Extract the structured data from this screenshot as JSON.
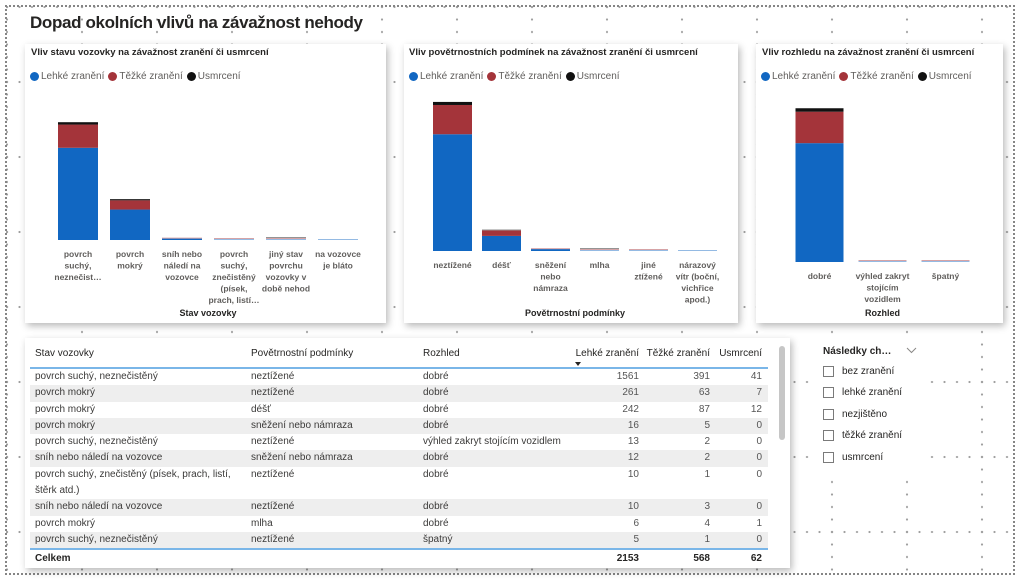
{
  "page": {
    "title": "Dopad okolních vlivů na závažnost nehody"
  },
  "chart_data": [
    {
      "type": "bar",
      "stacked": true,
      "title": "Vliv stavu vozovky na závažnost zranění či usmrcení",
      "xlabel": "Stav vozovky",
      "ylabel": "",
      "categories": [
        "povrch suchý, neznečist…",
        "povrch mokrý",
        "sníh nebo náledí na vozovce",
        "povrch suchý, znečistěný (písek, prach, listí…",
        "jiný stav povrchu vozovky v době nehod",
        "na vozovce je bláto"
      ],
      "tick_labels": [
        [
          "povrch",
          "suchý,",
          "neznečist…"
        ],
        [
          "povrch",
          "mokrý"
        ],
        [
          "sníh nebo",
          "náledí na",
          "vozovce"
        ],
        [
          "povrch",
          "suchý,",
          "znečistěný",
          "(písek,",
          "prach, listí…"
        ],
        [
          "jiný stav",
          "povrchu",
          "vozovky v",
          "době nehod"
        ],
        [
          "na vozovce",
          "je bláto"
        ]
      ],
      "series": [
        {
          "name": "Lehké zranění",
          "color": "#1167C2",
          "values": [
            1590,
            525,
            24,
            11,
            2,
            1
          ]
        },
        {
          "name": "Těžké zranění",
          "color": "#A4343A",
          "values": [
            400,
            159,
            5,
            3,
            1,
            0
          ]
        },
        {
          "name": "Usmrcení",
          "color": "#111111",
          "values": [
            41,
            20,
            0,
            0,
            1,
            0
          ]
        }
      ],
      "ylim": [
        0,
        2500
      ],
      "grid": false,
      "legend": "top-left"
    },
    {
      "type": "bar",
      "stacked": true,
      "title": "Vliv povětrnostních podmínek na závažnost zranění či usmrcení",
      "xlabel": "Povětrnostní podmínky",
      "ylabel": "",
      "categories": [
        "neztížené",
        "déšť",
        "sněžení nebo námraza",
        "mlha",
        "jiné ztížené",
        "nárazový vítr (boční, vichřice apod.)"
      ],
      "tick_labels": [
        [
          "neztížené"
        ],
        [
          "déšť"
        ],
        [
          "sněžení",
          "nebo",
          "námraza"
        ],
        [
          "mlha"
        ],
        [
          "jiné",
          "ztížené"
        ],
        [
          "nárazový",
          "vítr (boční,",
          "vichřice",
          "apod.)"
        ]
      ],
      "series": [
        {
          "name": "Lehké zranění",
          "color": "#1167C2",
          "values": [
            1871,
            242,
            30,
            6,
            3,
            1
          ]
        },
        {
          "name": "Těžké zranění",
          "color": "#A4343A",
          "values": [
            469,
            87,
            7,
            4,
            1,
            0
          ]
        },
        {
          "name": "Usmrcení",
          "color": "#111111",
          "values": [
            49,
            12,
            0,
            1,
            0,
            0
          ]
        }
      ],
      "ylim": [
        0,
        2500
      ],
      "grid": false,
      "legend": "top-left"
    },
    {
      "type": "bar",
      "stacked": true,
      "title": "Vliv rozhledu na závažnost zranění či usmrcení",
      "xlabel": "Rozhled",
      "ylabel": "",
      "categories": [
        "dobré",
        "výhled zakryt stojícím vozidlem",
        "špatný"
      ],
      "tick_labels": [
        [
          "dobré"
        ],
        [
          "výhled zakryt",
          "stojícím",
          "vozidlem"
        ],
        [
          "špatný"
        ]
      ],
      "series": [
        {
          "name": "Lehké zranění",
          "color": "#1167C2",
          "values": [
            2135,
            13,
            5
          ]
        },
        {
          "name": "Těžké zranění",
          "color": "#A4343A",
          "values": [
            565,
            2,
            1
          ]
        },
        {
          "name": "Usmrcení",
          "color": "#111111",
          "values": [
            62,
            0,
            0
          ]
        }
      ],
      "ylim": [
        0,
        3000
      ],
      "grid": false,
      "legend": "top-left"
    }
  ],
  "table": {
    "columns": [
      "Stav vozovky",
      "Povětrnostní podmínky",
      "Rozhled",
      "Lehké zranění",
      "Těžké zranění",
      "Usmrcení"
    ],
    "sorted_column": "Lehké zranění",
    "sort_direction": "descending",
    "rows": [
      [
        "povrch suchý, neznečistěný",
        "neztížené",
        "dobré",
        "1561",
        "391",
        "41"
      ],
      [
        "povrch mokrý",
        "neztížené",
        "dobré",
        "261",
        "63",
        "7"
      ],
      [
        "povrch mokrý",
        "déšť",
        "dobré",
        "242",
        "87",
        "12"
      ],
      [
        "povrch mokrý",
        "sněžení nebo námraza",
        "dobré",
        "16",
        "5",
        "0"
      ],
      [
        "povrch suchý, neznečistěný",
        "neztížené",
        "výhled zakryt stojícím vozidlem",
        "13",
        "2",
        "0"
      ],
      [
        "sníh nebo náledí na vozovce",
        "sněžení nebo námraza",
        "dobré",
        "12",
        "2",
        "0"
      ],
      [
        "povrch suchý, znečistěný (písek, prach, listí, štěrk atd.)",
        "neztížené",
        "dobré",
        "10",
        "1",
        "0"
      ],
      [
        "sníh nebo náledí na vozovce",
        "neztížené",
        "dobré",
        "10",
        "3",
        "0"
      ],
      [
        "povrch mokrý",
        "mlha",
        "dobré",
        "6",
        "4",
        "1"
      ],
      [
        "povrch suchý, neznečistěný",
        "neztížené",
        "špatný",
        "5",
        "1",
        "0"
      ]
    ],
    "total": {
      "label": "Celkem",
      "values": [
        "2153",
        "568",
        "62"
      ]
    }
  },
  "slicer": {
    "title": "Následky ch…",
    "items": [
      {
        "label": "bez zranění",
        "checked": false
      },
      {
        "label": "lehké zranění",
        "checked": false
      },
      {
        "label": "nezjištěno",
        "checked": false
      },
      {
        "label": "těžké zranění",
        "checked": false
      },
      {
        "label": "usmrcení",
        "checked": false
      }
    ]
  }
}
